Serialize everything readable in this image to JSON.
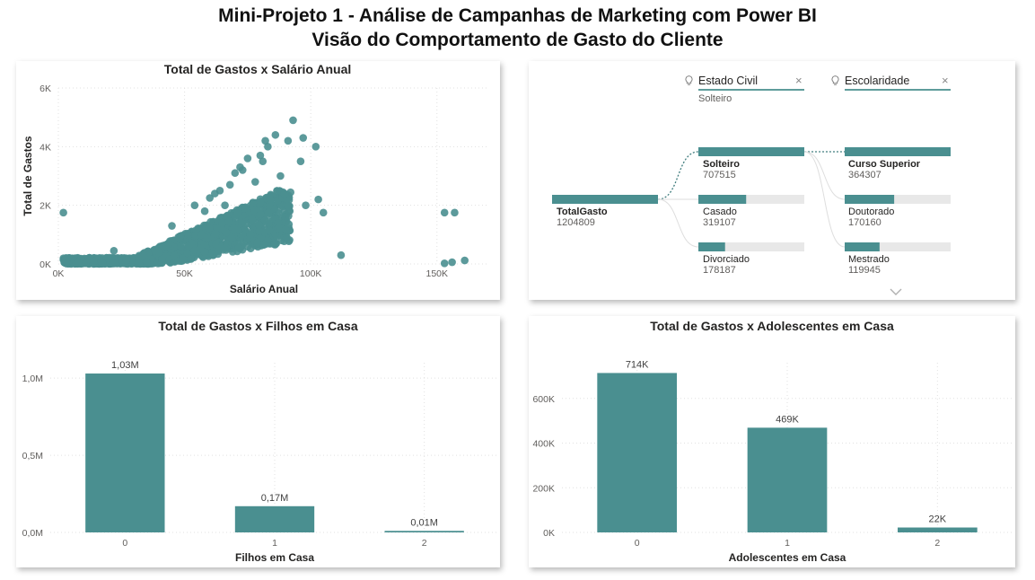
{
  "page": {
    "title_line1": "Mini-Projeto 1 - Análise de Campanhas de Marketing com Power BI",
    "title_line2": "Visão do Comportamento de Gasto do Cliente"
  },
  "colors": {
    "accent": "#4a8f90",
    "track": "#e8e8e8",
    "grid": "#e1e1e1"
  },
  "chart_data": [
    {
      "id": "scatter",
      "type": "scatter",
      "title": "Total de Gastos x Salário Anual",
      "xlabel": "Salário Anual",
      "ylabel": "Total de Gastos",
      "xlim": [
        0,
        170000
      ],
      "ylim": [
        0,
        6000
      ],
      "xticks": [
        0,
        50000,
        100000,
        150000
      ],
      "xtick_labels": [
        "0K",
        "50K",
        "100K",
        "150K"
      ],
      "yticks": [
        0,
        2000,
        4000,
        6000
      ],
      "ytick_labels": [
        "0K",
        "2K",
        "4K",
        "6K"
      ],
      "outliers": [
        [
          2000,
          1750
        ],
        [
          7000,
          40
        ],
        [
          8000,
          60
        ],
        [
          22000,
          450
        ],
        [
          35000,
          80
        ],
        [
          45000,
          1300
        ],
        [
          54000,
          2000
        ],
        [
          60000,
          2250
        ],
        [
          62000,
          2400
        ],
        [
          64000,
          2500
        ],
        [
          68000,
          2700
        ],
        [
          70000,
          3100
        ],
        [
          72000,
          3300
        ],
        [
          73000,
          3200
        ],
        [
          75000,
          3600
        ],
        [
          80000,
          3700
        ],
        [
          81000,
          3500
        ],
        [
          83000,
          4000
        ],
        [
          82000,
          4200
        ],
        [
          86000,
          4400
        ],
        [
          91000,
          4200
        ],
        [
          93000,
          4900
        ],
        [
          97000,
          4300
        ],
        [
          102000,
          4000
        ],
        [
          96000,
          3500
        ],
        [
          88000,
          3000
        ],
        [
          105000,
          1750
        ],
        [
          103000,
          2200
        ],
        [
          98000,
          2000
        ],
        [
          112000,
          300
        ],
        [
          153000,
          1750
        ],
        [
          157000,
          1750
        ],
        [
          153000,
          20
        ],
        [
          156000,
          60
        ],
        [
          161000,
          120
        ],
        [
          84000,
          2200
        ],
        [
          78000,
          2800
        ],
        [
          66000,
          2000
        ],
        [
          58000,
          1800
        ]
      ]
    },
    {
      "id": "filhos",
      "type": "bar",
      "title": "Total de Gastos x Filhos em Casa",
      "xlabel": "Filhos em Casa",
      "ylabel": "",
      "categories": [
        "0",
        "1",
        "2"
      ],
      "values": [
        1030000,
        170000,
        10000
      ],
      "data_labels": [
        "1,03M",
        "0,17M",
        "0,01M"
      ],
      "ylim": [
        0,
        1100000
      ],
      "yticks": [
        0,
        500000,
        1000000
      ],
      "ytick_labels": [
        "0,0M",
        "0,5M",
        "1,0M"
      ]
    },
    {
      "id": "adolescentes",
      "type": "bar",
      "title": "Total de Gastos x Adolescentes em Casa",
      "xlabel": "Adolescentes em Casa",
      "ylabel": "",
      "categories": [
        "0",
        "1",
        "2"
      ],
      "values": [
        714000,
        469000,
        22000
      ],
      "data_labels": [
        "714K",
        "469K",
        "22K"
      ],
      "ylim": [
        0,
        760000
      ],
      "yticks": [
        0,
        200000,
        400000,
        600000
      ],
      "ytick_labels": [
        "0K",
        "200K",
        "400K",
        "600K"
      ]
    }
  ],
  "decomposition": {
    "root": {
      "label": "TotalGasto",
      "value": "1204809",
      "amount": 1204809
    },
    "levels": [
      {
        "title": "Estado Civil",
        "filter": "Solteiro",
        "close": "×",
        "nodes": [
          {
            "label": "Solteiro",
            "value": "707515",
            "amount": 707515,
            "selected": true
          },
          {
            "label": "Casado",
            "value": "319107",
            "amount": 319107,
            "selected": false
          },
          {
            "label": "Divorciado",
            "value": "178187",
            "amount": 178187,
            "selected": false
          }
        ]
      },
      {
        "title": "Escolaridade",
        "filter": "",
        "close": "×",
        "nodes": [
          {
            "label": "Curso Superior",
            "value": "364307",
            "amount": 364307,
            "selected": true
          },
          {
            "label": "Doutorado",
            "value": "170160",
            "amount": 170160,
            "selected": false
          },
          {
            "label": "Mestrado",
            "value": "119945",
            "amount": 119945,
            "selected": false
          }
        ]
      }
    ],
    "more_icon": "chevron-down-icon"
  }
}
